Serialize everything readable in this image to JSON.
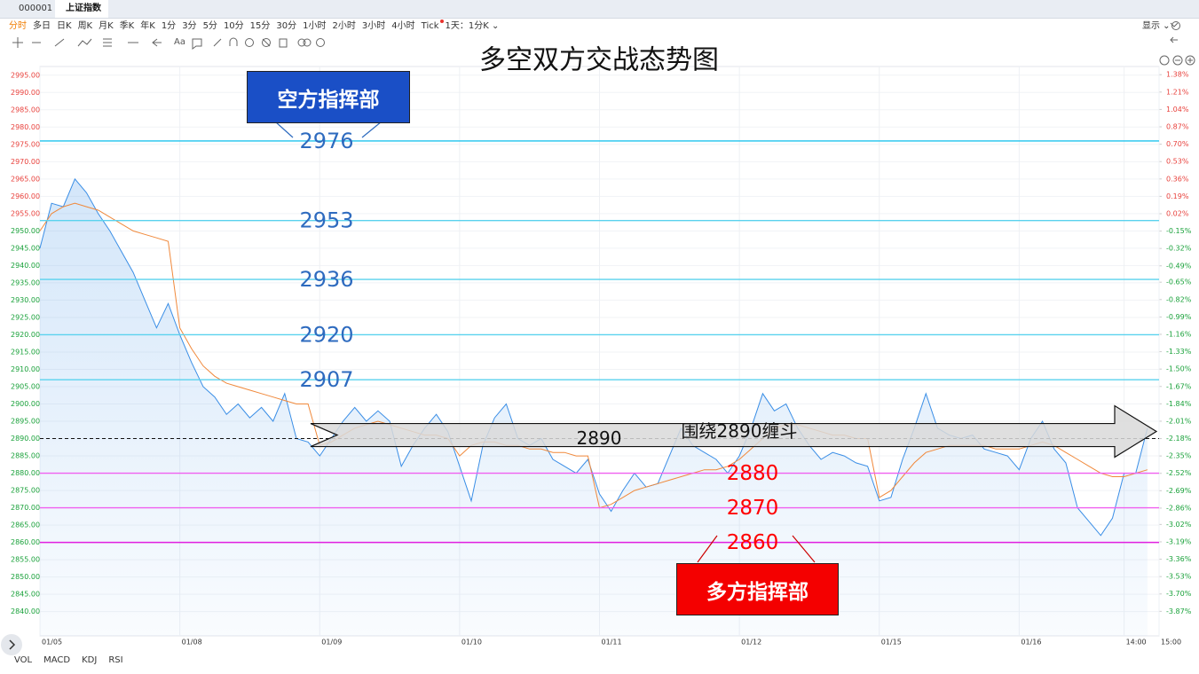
{
  "header": {
    "code": "000001",
    "tab": "上证指数"
  },
  "toolbar": {
    "periods": [
      "分时",
      "多日",
      "日K",
      "周K",
      "月K",
      "季K",
      "年K",
      "1分",
      "3分",
      "5分",
      "10分",
      "15分",
      "30分",
      "1小时",
      "2小时",
      "3小时",
      "4小时",
      "Tick",
      "1天：1分K ⌄"
    ],
    "display": "显示 ⌄",
    "text_tool": "Aa"
  },
  "chart_data": {
    "type": "line",
    "title": "多空双方交战态势图",
    "xlim": [
      0,
      96
    ],
    "xticks": [
      {
        "value": 0,
        "label": "01/05"
      },
      {
        "value": 12,
        "label": "01/08"
      },
      {
        "value": 24,
        "label": "01/09"
      },
      {
        "value": 36,
        "label": "01/10"
      },
      {
        "value": 48,
        "label": "01/11"
      },
      {
        "value": 60,
        "label": "01/12"
      },
      {
        "value": 72,
        "label": "01/15"
      },
      {
        "value": 84,
        "label": "01/16"
      },
      {
        "value": 93,
        "label": "14:00"
      },
      {
        "value": 96,
        "label": "15:00"
      }
    ],
    "ylim": [
      2833,
      2997.5
    ],
    "yticks": [
      {
        "value": 2995,
        "label": "2995.00"
      },
      {
        "value": 2990,
        "label": "2990.00"
      },
      {
        "value": 2985,
        "label": "2985.00"
      },
      {
        "value": 2980,
        "label": "2980.00"
      },
      {
        "value": 2975,
        "label": "2975.00"
      },
      {
        "value": 2970,
        "label": "2970.00"
      },
      {
        "value": 2965,
        "label": "2965.00"
      },
      {
        "value": 2960,
        "label": "2960.00"
      },
      {
        "value": 2955,
        "label": "2955.00"
      },
      {
        "value": 2950,
        "label": "2950.00"
      },
      {
        "value": 2945,
        "label": "2945.00"
      },
      {
        "value": 2940,
        "label": "2940.00"
      },
      {
        "value": 2935,
        "label": "2935.00"
      },
      {
        "value": 2930,
        "label": "2930.00"
      },
      {
        "value": 2925,
        "label": "2925.00"
      },
      {
        "value": 2920,
        "label": "2920.00"
      },
      {
        "value": 2915,
        "label": "2915.00"
      },
      {
        "value": 2910,
        "label": "2910.00"
      },
      {
        "value": 2905,
        "label": "2905.00"
      },
      {
        "value": 2900,
        "label": "2900.00"
      },
      {
        "value": 2895,
        "label": "2895.00"
      },
      {
        "value": 2890,
        "label": "2890.00"
      },
      {
        "value": 2885,
        "label": "2885.00"
      },
      {
        "value": 2880,
        "label": "2880.00"
      },
      {
        "value": 2875,
        "label": "2875.00"
      },
      {
        "value": 2870,
        "label": "2870.00"
      },
      {
        "value": 2865,
        "label": "2865.00"
      },
      {
        "value": 2860,
        "label": "2860.00"
      },
      {
        "value": 2855,
        "label": "2855.00"
      },
      {
        "value": 2850,
        "label": "2850.00"
      },
      {
        "value": 2845,
        "label": "2845.00"
      },
      {
        "value": 2840,
        "label": "2840.00"
      }
    ],
    "y2lim": [
      -4.11,
      1.46
    ],
    "y2ticks": [
      {
        "value": 1.38,
        "label": "1.38%"
      },
      {
        "value": 1.21,
        "label": "1.21%"
      },
      {
        "value": 1.04,
        "label": "1.04%"
      },
      {
        "value": 0.87,
        "label": "0.87%"
      },
      {
        "value": 0.7,
        "label": "0.70%"
      },
      {
        "value": 0.53,
        "label": "0.53%"
      },
      {
        "value": 0.36,
        "label": "0.36%"
      },
      {
        "value": 0.19,
        "label": "0.19%"
      },
      {
        "value": 0.02,
        "label": "0.02%"
      },
      {
        "value": -0.15,
        "label": "-0.15%"
      },
      {
        "value": -0.32,
        "label": "-0.32%"
      },
      {
        "value": -0.49,
        "label": "-0.49%"
      },
      {
        "value": -0.65,
        "label": "-0.65%"
      },
      {
        "value": -0.82,
        "label": "-0.82%"
      },
      {
        "value": -0.99,
        "label": "-0.99%"
      },
      {
        "value": -1.16,
        "label": "-1.16%"
      },
      {
        "value": -1.33,
        "label": "-1.33%"
      },
      {
        "value": -1.5,
        "label": "-1.50%"
      },
      {
        "value": -1.67,
        "label": "-1.67%"
      },
      {
        "value": -1.84,
        "label": "-1.84%"
      },
      {
        "value": -2.01,
        "label": "-2.01%"
      },
      {
        "value": -2.18,
        "label": "-2.18%"
      },
      {
        "value": -2.35,
        "label": "-2.35%"
      },
      {
        "value": -2.52,
        "label": "-2.52%"
      },
      {
        "value": -2.69,
        "label": "-2.69%"
      },
      {
        "value": -2.86,
        "label": "-2.86%"
      },
      {
        "value": -3.02,
        "label": "-3.02%"
      },
      {
        "value": -3.19,
        "label": "-3.19%"
      },
      {
        "value": -3.36,
        "label": "-3.36%"
      },
      {
        "value": -3.53,
        "label": "-3.53%"
      },
      {
        "value": -3.7,
        "label": "-3.70%"
      },
      {
        "value": -3.87,
        "label": "-3.87%"
      }
    ],
    "grid": true,
    "up_color": "#e8413c",
    "down_color": "#19a13a",
    "series": [
      {
        "color": "#3a8ee6",
        "values": [
          2945,
          2958,
          2957,
          2965,
          2961,
          2955,
          2950,
          2944,
          2938,
          2930,
          2922,
          2929,
          2920,
          2912,
          2905,
          2902,
          2897,
          2900,
          2896,
          2899,
          2895,
          2903,
          2890,
          2889,
          2885,
          2890,
          2895,
          2899,
          2895,
          2898,
          2895,
          2882,
          2888,
          2893,
          2897,
          2892,
          2882,
          2872,
          2888,
          2896,
          2900,
          2890,
          2888,
          2890,
          2884,
          2882,
          2880,
          2884,
          2874,
          2869,
          2875,
          2880,
          2876,
          2877,
          2885,
          2893,
          2888,
          2886,
          2884,
          2880,
          2885,
          2893,
          2903,
          2898,
          2900,
          2893,
          2888,
          2884,
          2886,
          2885,
          2883,
          2882,
          2872,
          2873,
          2884,
          2893,
          2903,
          2893,
          2891,
          2890,
          2891,
          2887,
          2886,
          2885,
          2881,
          2890,
          2895,
          2887,
          2883,
          2870,
          2866,
          2862,
          2867,
          2880,
          2880,
          2893
        ]
      },
      {
        "color": "#f0883a",
        "values": [
          2950,
          2955,
          2957,
          2958,
          2957,
          2956,
          2954,
          2952,
          2950,
          2949,
          2948,
          2947,
          2922,
          2916,
          2911,
          2908,
          2906,
          2905,
          2904,
          2903,
          2902,
          2901,
          2900,
          2900,
          2888,
          2889,
          2891,
          2893,
          2894,
          2895,
          2894,
          2893,
          2892,
          2891,
          2891,
          2890,
          2885,
          2888,
          2889,
          2889,
          2888,
          2888,
          2887,
          2887,
          2886,
          2886,
          2885,
          2885,
          2870,
          2871,
          2873,
          2875,
          2876,
          2877,
          2878,
          2879,
          2880,
          2881,
          2881,
          2882,
          2884,
          2887,
          2890,
          2893,
          2894,
          2894,
          2893,
          2892,
          2891,
          2891,
          2890,
          2890,
          2873,
          2875,
          2879,
          2883,
          2886,
          2887,
          2888,
          2888,
          2888,
          2888,
          2887,
          2887,
          2887,
          2888,
          2889,
          2888,
          2886,
          2884,
          2882,
          2880,
          2879,
          2879,
          2880,
          2881
        ]
      }
    ],
    "levels": [
      {
        "value": 2976,
        "color": "#1fc3ee",
        "text_color": "#2e6bbf"
      },
      {
        "value": 2953,
        "color": "#5ad2ee",
        "text_color": "#2e6bbf"
      },
      {
        "value": 2936,
        "color": "#5ad2ee",
        "text_color": "#2e6bbf"
      },
      {
        "value": 2920,
        "color": "#5ad2ee",
        "text_color": "#2e6bbf"
      },
      {
        "value": 2907,
        "color": "#5ad2ee",
        "text_color": "#2e6bbf"
      },
      {
        "value": 2880,
        "color": "#f060f0",
        "text_color": "#ff0000"
      },
      {
        "value": 2870,
        "color": "#f060f0",
        "text_color": "#ff0000"
      },
      {
        "value": 2860,
        "color": "#e01fe0",
        "text_color": "#ff0000"
      }
    ],
    "arrow": {
      "value": 2890,
      "text": "围绕2890缠斗"
    }
  },
  "callouts": [
    "空方指挥部",
    "多方指挥部"
  ],
  "indicators": [
    "VOL",
    "MACD",
    "KDJ",
    "RSI"
  ]
}
